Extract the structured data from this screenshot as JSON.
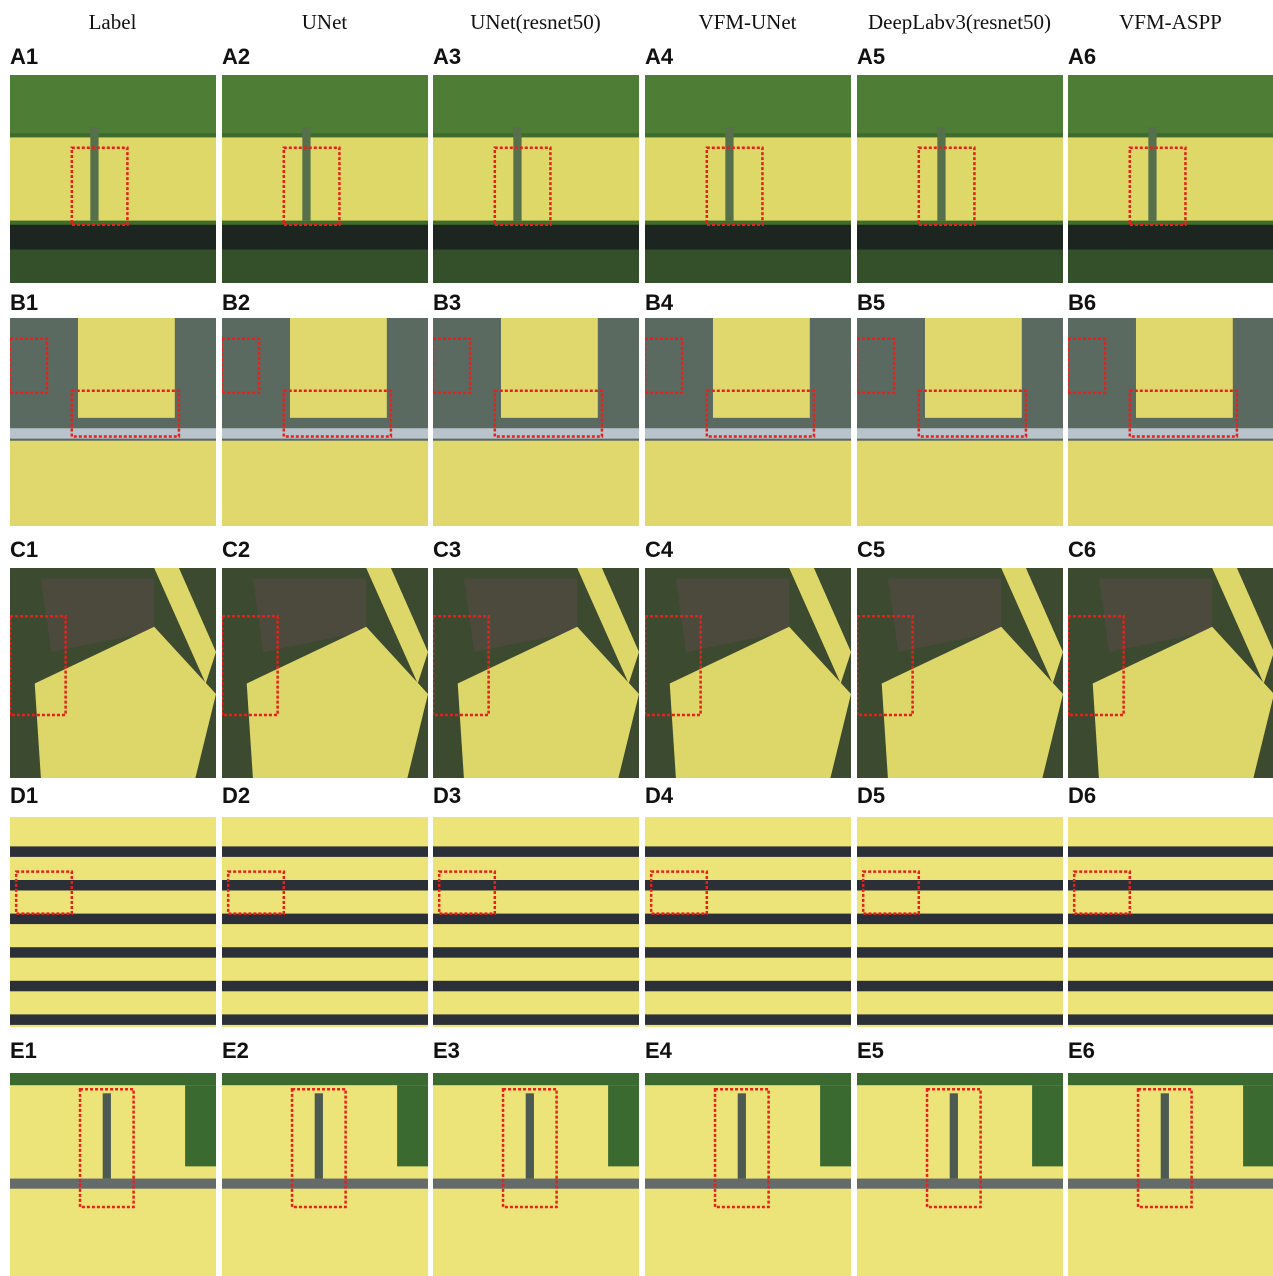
{
  "columns": [
    "Label",
    "UNet",
    "UNet(resnet50)",
    "VFM-UNet",
    "DeepLabv3(resnet50)",
    "VFM-ASPP"
  ],
  "rows": [
    {
      "panels": [
        "A1",
        "A2",
        "A3",
        "A4",
        "A5",
        "A6"
      ]
    },
    {
      "panels": [
        "B1",
        "B2",
        "B3",
        "B4",
        "B5",
        "B6"
      ]
    },
    {
      "panels": [
        "C1",
        "C2",
        "C3",
        "C4",
        "C5",
        "C6"
      ]
    },
    {
      "panels": [
        "D1",
        "D2",
        "D3",
        "D4",
        "D5",
        "D6"
      ]
    },
    {
      "panels": [
        "E1",
        "E2",
        "E3",
        "E4",
        "E5",
        "E6"
      ]
    }
  ]
}
